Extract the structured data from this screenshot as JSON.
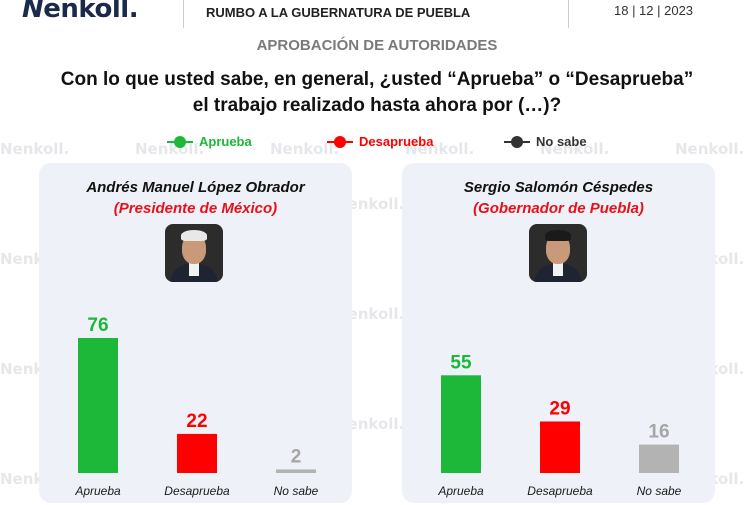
{
  "header": {
    "logo_text": "enkoll.",
    "topic": "RUMBO A LA GUBERNATURA DE PUEBLA",
    "date": "18 | 12 | 2023"
  },
  "subtitle": "APROBACIÓN DE AUTORIDADES",
  "question_line1": "Con lo que usted sabe, en general, ¿usted “Aprueba” o “Desaprueba”",
  "question_line2": "el trabajo realizado hasta ahora por (…)?",
  "legend": [
    {
      "label": "Aprueba",
      "color": "#1db83a"
    },
    {
      "label": "Desaprueba",
      "color": "#ff0000"
    },
    {
      "label": "No sabe",
      "color": "#333333"
    }
  ],
  "watermark_text": "enkoll.",
  "panels": [
    {
      "name": "Andrés Manuel López Obrador",
      "role": "(Presidente de México)",
      "photo_icon": "person-photo-icon"
    },
    {
      "name": "Sergio Salomón Céspedes",
      "role": "(Gobernador de Puebla)",
      "photo_icon": "person-photo-icon"
    }
  ],
  "chart_data": [
    {
      "type": "bar",
      "categories": [
        "Aprueba",
        "Desaprueba",
        "No sabe"
      ],
      "values": [
        76,
        22,
        2
      ],
      "colors": [
        "#1db83a",
        "#ff0000",
        "#b3b3b3"
      ],
      "ylim": [
        0,
        80
      ],
      "grid": false
    },
    {
      "type": "bar",
      "categories": [
        "Aprueba",
        "Desaprueba",
        "No sabe"
      ],
      "values": [
        55,
        29,
        16
      ],
      "colors": [
        "#1db83a",
        "#ff0000",
        "#b3b3b3"
      ],
      "ylim": [
        0,
        80
      ],
      "grid": false
    }
  ]
}
